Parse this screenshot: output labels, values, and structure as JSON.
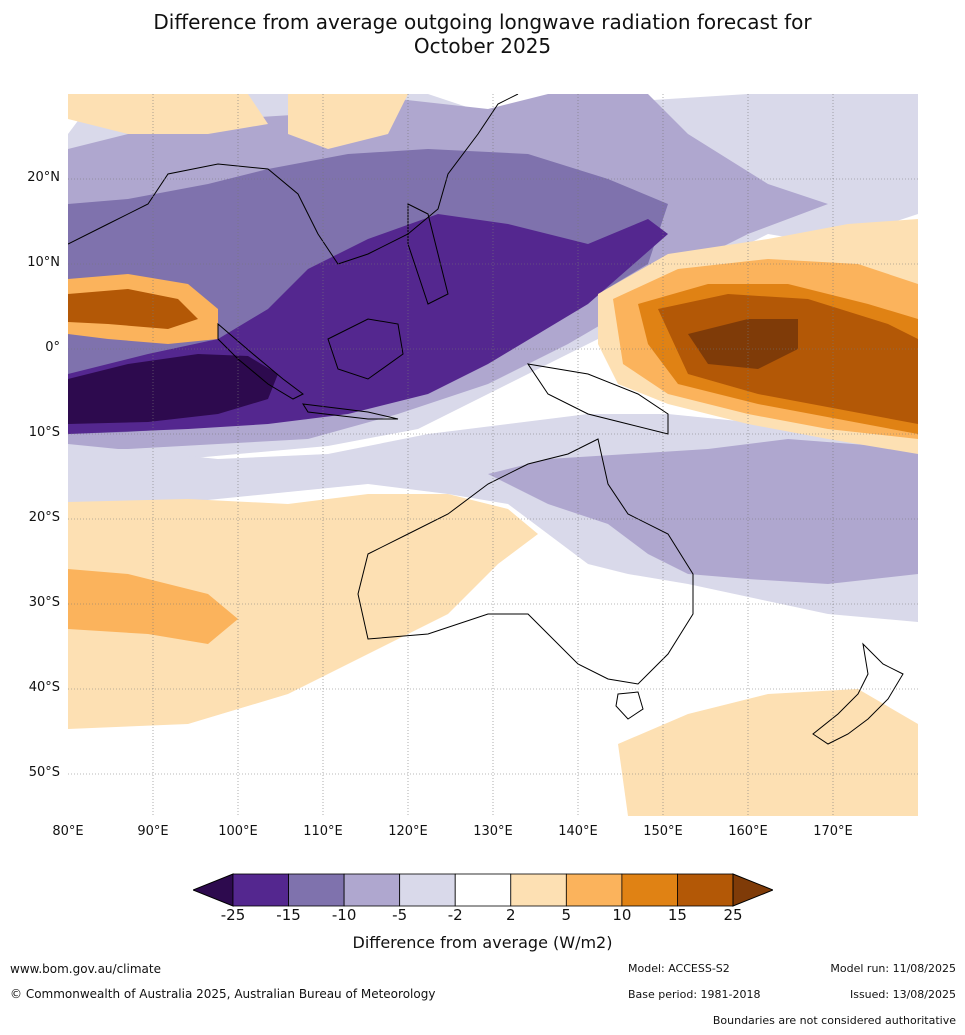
{
  "title_line1": "Difference from average outgoing longwave radiation forecast for",
  "title_line2": "October 2025",
  "map": {
    "lat_ticks": [
      "20°N",
      "10°N",
      "0°",
      "10°S",
      "20°S",
      "30°S",
      "40°S",
      "50°S"
    ],
    "lon_ticks": [
      "80°E",
      "90°E",
      "100°E",
      "110°E",
      "120°E",
      "130°E",
      "140°E",
      "150°E",
      "160°E",
      "170°E"
    ],
    "extent": {
      "lon_min": 80,
      "lon_max": 180,
      "lat_min": -55,
      "lat_max": 30
    }
  },
  "colorbar": {
    "ticks": [
      "-25",
      "-15",
      "-10",
      "-5",
      "-2",
      "2",
      "5",
      "10",
      "15",
      "25"
    ],
    "colors": [
      "#2d0a4e",
      "#54278f",
      "#7f72ad",
      "#afa7cf",
      "#d9d9ea",
      "#ffffff",
      "#fde0b3",
      "#fbb35c",
      "#e08214",
      "#b35806",
      "#7f3b08"
    ],
    "label": "Difference from average (W/m2)"
  },
  "footer": {
    "website": "www.bom.gov.au/climate",
    "copyright": "© Commonwealth of Australia 2025, Australian Bureau of Meteorology",
    "model": "Model: ACCESS-S2",
    "base_period": "Base period: 1981-2018",
    "model_run": "Model run: 11/08/2025",
    "issued": "Issued: 13/08/2025",
    "disclaimer": "Boundaries are not considered authoritative"
  }
}
